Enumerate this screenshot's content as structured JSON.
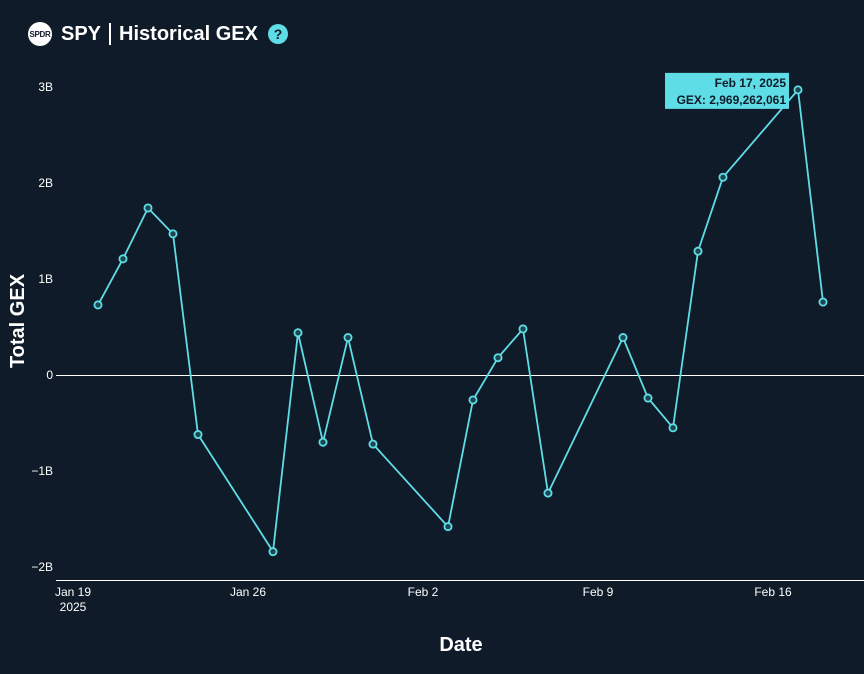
{
  "header": {
    "logo_text": "SPDR",
    "ticker": "SPY",
    "title": "Historical GEX",
    "help_glyph": "?",
    "icons": [
      "spdr-logo-icon",
      "help-icon"
    ]
  },
  "colors": {
    "background": "#0f1b28",
    "line": "#5fdde6",
    "marker_fill": "#1d4750",
    "axis": "#ffffff",
    "tooltip_bg": "#5fdde6"
  },
  "tooltip": {
    "date": "Feb 17, 2025",
    "value_text": "GEX: 2,969,262,061"
  },
  "chart_data": {
    "type": "line",
    "title": "",
    "xlabel": "Date",
    "ylabel": "Total GEX",
    "ylim": [
      -2.1,
      3.2
    ],
    "xlim": [
      "2025-01-18",
      "2025-02-19"
    ],
    "grid": false,
    "y_ticks": [
      {
        "v": 3,
        "label": "3B"
      },
      {
        "v": 2,
        "label": "2B"
      },
      {
        "v": 1,
        "label": "1B"
      },
      {
        "v": 0,
        "label": "0"
      },
      {
        "v": -1,
        "label": "−1B"
      },
      {
        "v": -2,
        "label": "−2B"
      }
    ],
    "x_ticks": [
      {
        "date": "2025-01-19",
        "label": "Jan 19",
        "sub": "2025"
      },
      {
        "date": "2025-01-26",
        "label": "Jan 26",
        "sub": ""
      },
      {
        "date": "2025-02-02",
        "label": "Feb 2",
        "sub": ""
      },
      {
        "date": "2025-02-09",
        "label": "Feb 9",
        "sub": ""
      },
      {
        "date": "2025-02-16",
        "label": "Feb 16",
        "sub": ""
      }
    ],
    "series": [
      {
        "y_unit": "billions",
        "points": [
          {
            "date": "2025-01-20",
            "y": 0.73
          },
          {
            "date": "2025-01-21",
            "y": 1.21
          },
          {
            "date": "2025-01-22",
            "y": 1.74
          },
          {
            "date": "2025-01-23",
            "y": 1.47
          },
          {
            "date": "2025-01-24",
            "y": -0.62
          },
          {
            "date": "2025-01-27",
            "y": -1.84
          },
          {
            "date": "2025-01-28",
            "y": 0.44
          },
          {
            "date": "2025-01-29",
            "y": -0.7
          },
          {
            "date": "2025-01-30",
            "y": 0.39
          },
          {
            "date": "2025-01-31",
            "y": -0.72
          },
          {
            "date": "2025-02-03",
            "y": -1.58
          },
          {
            "date": "2025-02-04",
            "y": -0.26
          },
          {
            "date": "2025-02-05",
            "y": 0.18
          },
          {
            "date": "2025-02-06",
            "y": 0.48
          },
          {
            "date": "2025-02-07",
            "y": -1.23
          },
          {
            "date": "2025-02-10",
            "y": 0.39
          },
          {
            "date": "2025-02-11",
            "y": -0.24
          },
          {
            "date": "2025-02-12",
            "y": -0.55
          },
          {
            "date": "2025-02-13",
            "y": 1.29
          },
          {
            "date": "2025-02-14",
            "y": 2.06
          },
          {
            "date": "2025-02-17",
            "y": 2.97
          },
          {
            "date": "2025-02-18",
            "y": 0.76
          }
        ]
      }
    ]
  }
}
